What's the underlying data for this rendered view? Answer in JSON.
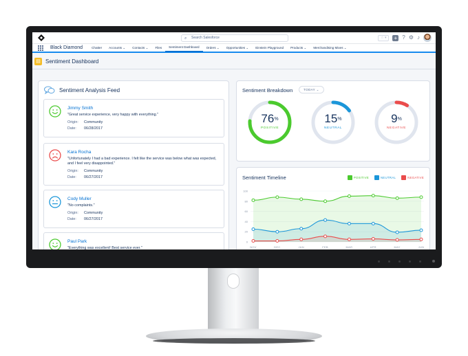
{
  "header": {
    "search_placeholder": "Search Salesforce",
    "favorites_label": "☆ ▾"
  },
  "nav": {
    "app_name": "Black Diamond",
    "items": [
      {
        "label": "Chatter",
        "active": false
      },
      {
        "label": "Accounts ⌄",
        "active": false
      },
      {
        "label": "Contacts ⌄",
        "active": false
      },
      {
        "label": "Files",
        "active": false
      },
      {
        "label": "Sentiment Dashboard",
        "active": true
      },
      {
        "label": "Orders ⌄",
        "active": false
      },
      {
        "label": "Opportunities ⌄",
        "active": false
      },
      {
        "label": "Einstein Playground",
        "active": false
      },
      {
        "label": "Products ⌄",
        "active": false
      },
      {
        "label": "Merchandising Mixes ⌄",
        "active": false
      }
    ]
  },
  "page": {
    "title": "Sentiment Dashboard"
  },
  "feed": {
    "title": "Sentiment Analysis Feed",
    "origin_label": "Origin:",
    "date_label": "Date:",
    "items": [
      {
        "name": "Jimmy Smith",
        "quote": "\"Great service experience, very happy with everything.\"",
        "origin": "Community",
        "date": "06/28/2017",
        "sentiment": "positive"
      },
      {
        "name": "Kara Rocha",
        "quote": "\"Unfortunately I had a bad experience. I felt like the service was below what was expected, and I feel very disappointed.\"",
        "origin": "Community",
        "date": "06/27/2017",
        "sentiment": "negative"
      },
      {
        "name": "Cody Muller",
        "quote": "\"No complaints.\"",
        "origin": "Community",
        "date": "06/27/2017",
        "sentiment": "neutral"
      },
      {
        "name": "Paul Park",
        "quote": "\"Everything was excellent! Best service ever.\"",
        "origin": "",
        "date": "",
        "sentiment": "positive"
      }
    ]
  },
  "breakdown": {
    "title": "Sentiment Breakdown",
    "filter_label": "TODAY ⌄",
    "gauges": [
      {
        "value": "76",
        "unit": "%",
        "label": "POSITIVE",
        "fraction": 0.76,
        "color": "#4bca2e"
      },
      {
        "value": "15",
        "unit": "%",
        "label": "NEUTRAL",
        "fraction": 0.15,
        "color": "#1b96d9"
      },
      {
        "value": "9",
        "unit": "%",
        "label": "NEGATIVE",
        "fraction": 0.09,
        "color": "#ea4c4c"
      }
    ]
  },
  "timeline": {
    "title": "Sentiment Timeline"
  },
  "chart_data": {
    "type": "line",
    "categories": [
      "NOV",
      "DEC",
      "JAN",
      "FEB",
      "MAR",
      "APR",
      "MAY",
      "JUN"
    ],
    "ylim": [
      0,
      100
    ],
    "yticks": [
      "100",
      "80",
      "60",
      "40",
      "20",
      "0"
    ],
    "legend_position": "top-right",
    "series": [
      {
        "name": "POSITIVE",
        "color": "#4bca2e",
        "values": [
          82,
          88,
          84,
          80,
          90,
          91,
          86,
          88
        ]
      },
      {
        "name": "NEUTRAL",
        "color": "#1b96d9",
        "values": [
          25,
          20,
          26,
          43,
          36,
          36,
          19,
          23
        ]
      },
      {
        "name": "NEGATIVE",
        "color": "#ea4c4c",
        "values": [
          2,
          2,
          5,
          11,
          5,
          6,
          4,
          5
        ]
      }
    ]
  }
}
